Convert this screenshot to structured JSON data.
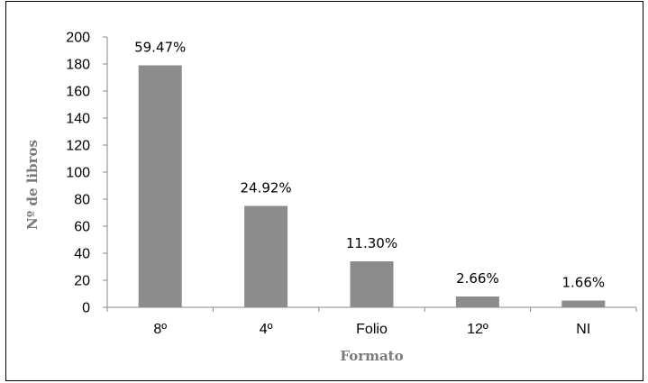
{
  "chart_data": {
    "type": "bar",
    "categories": [
      "8º",
      "4º",
      "Folio",
      "12º",
      "NI"
    ],
    "values": [
      179,
      75,
      34,
      8,
      5
    ],
    "data_labels": [
      "59.47%",
      "24.92%",
      "11.30%",
      "2.66%",
      "1.66%"
    ],
    "xlabel": "Formato",
    "ylabel": "Nº de libros",
    "ylim": [
      0,
      200
    ],
    "yticks": [
      "0",
      "20",
      "40",
      "60",
      "80",
      "100",
      "120",
      "140",
      "160",
      "180",
      "200"
    ],
    "grid": false,
    "bar_color": "#8c8c8c"
  }
}
